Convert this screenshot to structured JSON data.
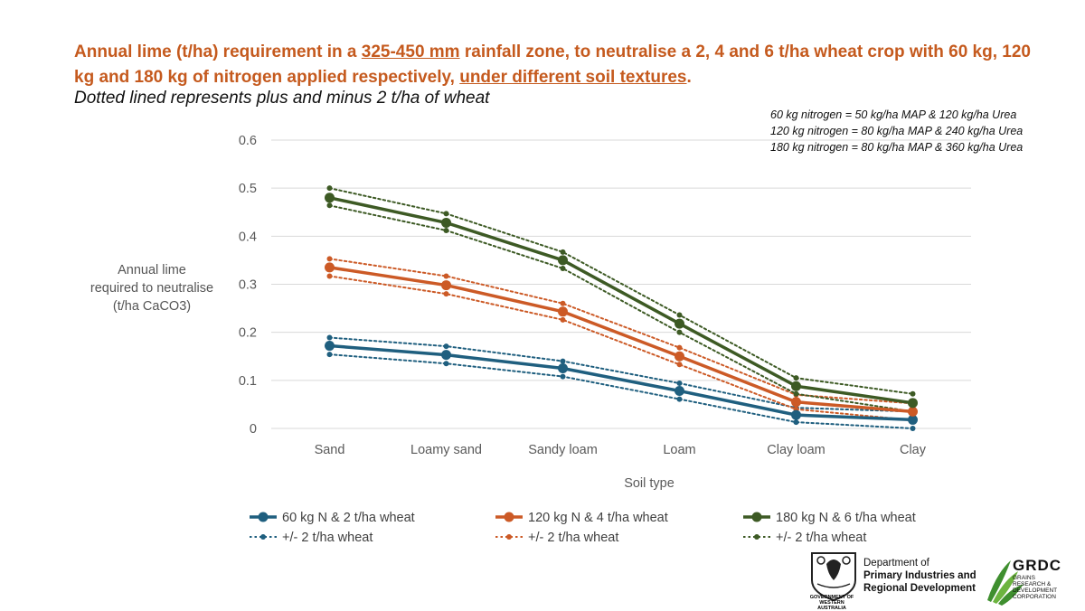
{
  "header": {
    "title_part1": "Annual lime (t/ha) requirement in a ",
    "title_underline1": "325-450 mm",
    "title_part2": " rainfall zone, to neutralise a 2, 4 and 6 t/ha wheat crop with 60 kg, 120 kg and 180 kg of nitrogen applied respectively, ",
    "title_underline2": "under different soil textures",
    "title_part3": ".",
    "subtitle": "Dotted lined represents plus and minus 2 t/ha of wheat"
  },
  "notes": [
    "60 kg nitrogen = 50 kg/ha MAP & 120 kg/ha Urea",
    "120 kg nitrogen = 80 kg/ha MAP & 240 kg/ha Urea",
    "180 kg nitrogen = 80 kg/ha MAP & 360 kg/ha Urea"
  ],
  "colors": {
    "blue": "#1f5f7f",
    "orange": "#cc5a26",
    "green": "#3d5a24",
    "grid": "#d9d9d9",
    "axis_text": "#595959"
  },
  "chart_data": {
    "type": "line",
    "title": "",
    "xlabel": "Soil type",
    "ylabel_lines": [
      "Annual lime",
      "required to neutralise",
      "(t/ha CaCO3)"
    ],
    "ylim": [
      0,
      0.6
    ],
    "yticks": [
      0,
      0.1,
      0.2,
      0.3,
      0.4,
      0.5,
      0.6
    ],
    "ytick_labels": [
      "0",
      "0.1",
      "0.2",
      "0.3",
      "0.4",
      "0.5",
      "0.6"
    ],
    "categories": [
      "Sand",
      "Loamy sand",
      "Sandy loam",
      "Loam",
      "Clay loam",
      "Clay"
    ],
    "series": [
      {
        "name": "60 kg N & 2 t/ha wheat",
        "color": "#1f5f7f",
        "style": "solid",
        "values": [
          0.172,
          0.153,
          0.125,
          0.078,
          0.028,
          0.018
        ]
      },
      {
        "name": "+/- 2 t/ha wheat",
        "color": "#1f5f7f",
        "style": "dotted",
        "values": [
          0.189,
          0.171,
          0.14,
          0.094,
          0.043,
          0.035
        ]
      },
      {
        "name": "+/- 2 t/ha wheat",
        "color": "#1f5f7f",
        "style": "dotted",
        "values": [
          0.154,
          0.135,
          0.108,
          0.061,
          0.013,
          0.0
        ]
      },
      {
        "name": "120 kg N & 4 t/ha wheat",
        "color": "#cc5a26",
        "style": "solid",
        "values": [
          0.335,
          0.298,
          0.243,
          0.15,
          0.055,
          0.035
        ]
      },
      {
        "name": "+/- 2 t/ha wheat",
        "color": "#cc5a26",
        "style": "dotted",
        "values": [
          0.353,
          0.317,
          0.26,
          0.168,
          0.07,
          0.052
        ]
      },
      {
        "name": "+/- 2 t/ha wheat",
        "color": "#cc5a26",
        "style": "dotted",
        "values": [
          0.317,
          0.28,
          0.226,
          0.133,
          0.04,
          0.017
        ]
      },
      {
        "name": "180 kg N & 6 t/ha wheat",
        "color": "#3d5a24",
        "style": "solid",
        "values": [
          0.48,
          0.428,
          0.35,
          0.218,
          0.088,
          0.053
        ]
      },
      {
        "name": "+/- 2 t/ha wheat",
        "color": "#3d5a24",
        "style": "dotted",
        "values": [
          0.5,
          0.447,
          0.367,
          0.236,
          0.105,
          0.072
        ]
      },
      {
        "name": "+/- 2 t/ha wheat",
        "color": "#3d5a24",
        "style": "dotted",
        "values": [
          0.464,
          0.412,
          0.333,
          0.2,
          0.072,
          0.035
        ]
      }
    ],
    "legend": [
      {
        "label": "60 kg N & 2 t/ha wheat",
        "color": "#1f5f7f",
        "style": "solid"
      },
      {
        "label": "120 kg N & 4 t/ha wheat",
        "color": "#cc5a26",
        "style": "solid"
      },
      {
        "label": "180 kg N & 6 t/ha wheat",
        "color": "#3d5a24",
        "style": "solid"
      },
      {
        "label": "+/- 2 t/ha wheat",
        "color": "#1f5f7f",
        "style": "dotted"
      },
      {
        "label": "+/- 2 t/ha wheat",
        "color": "#cc5a26",
        "style": "dotted"
      },
      {
        "label": "+/- 2 t/ha wheat",
        "color": "#3d5a24",
        "style": "dotted"
      }
    ]
  },
  "logos": {
    "dept_line1": "Department of",
    "dept_line2": "Primary Industries and",
    "dept_line3": "Regional Development",
    "wa_caption": "GOVERNMENT OF WESTERN AUSTRALIA",
    "grdc_name": "GRDC",
    "grdc_sub": "GRAINS RESEARCH & DEVELOPMENT CORPORATION"
  }
}
